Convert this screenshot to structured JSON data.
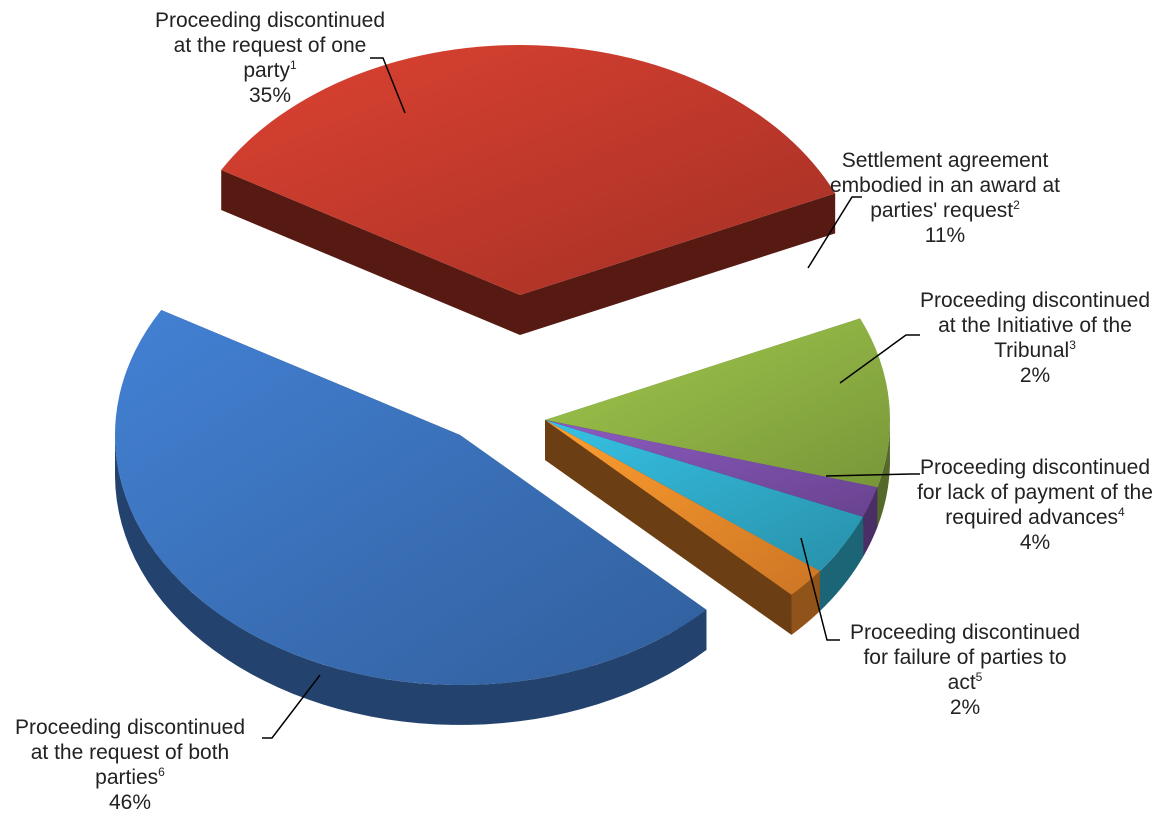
{
  "chart_data": {
    "type": "pie",
    "style": "3d-exploded",
    "title": "",
    "slices": [
      {
        "key": "one_party",
        "lines": [
          "Proceeding discontinued",
          "at the request of one",
          "party"
        ],
        "sup": "1",
        "value": 35,
        "pct_label": "35%",
        "color": "#c0392b"
      },
      {
        "key": "settlement",
        "lines": [
          "Settlement agreement",
          "embodied in an award at",
          "parties' request"
        ],
        "sup": "2",
        "value": 11,
        "pct_label": "11%",
        "color": "#8db043"
      },
      {
        "key": "tribunal",
        "lines": [
          "Proceeding discontinued",
          "at the Initiative of the",
          "Tribunal"
        ],
        "sup": "3",
        "value": 2,
        "pct_label": "2%",
        "color": "#7a4fa8"
      },
      {
        "key": "advances",
        "lines": [
          "Proceeding discontinued",
          "for lack of payment of the",
          "required advances"
        ],
        "sup": "4",
        "value": 4,
        "pct_label": "4%",
        "color": "#2fa9c7"
      },
      {
        "key": "failure",
        "lines": [
          "Proceeding discontinued",
          "for failure of parties to",
          "act"
        ],
        "sup": "5",
        "value": 2,
        "pct_label": "2%",
        "color": "#f08a2a"
      },
      {
        "key": "both_parties",
        "lines": [
          "Proceeding discontinued",
          "at the request of both",
          "parties"
        ],
        "sup": "6",
        "value": 46,
        "pct_label": "46%",
        "color": "#3a70b8"
      }
    ]
  }
}
